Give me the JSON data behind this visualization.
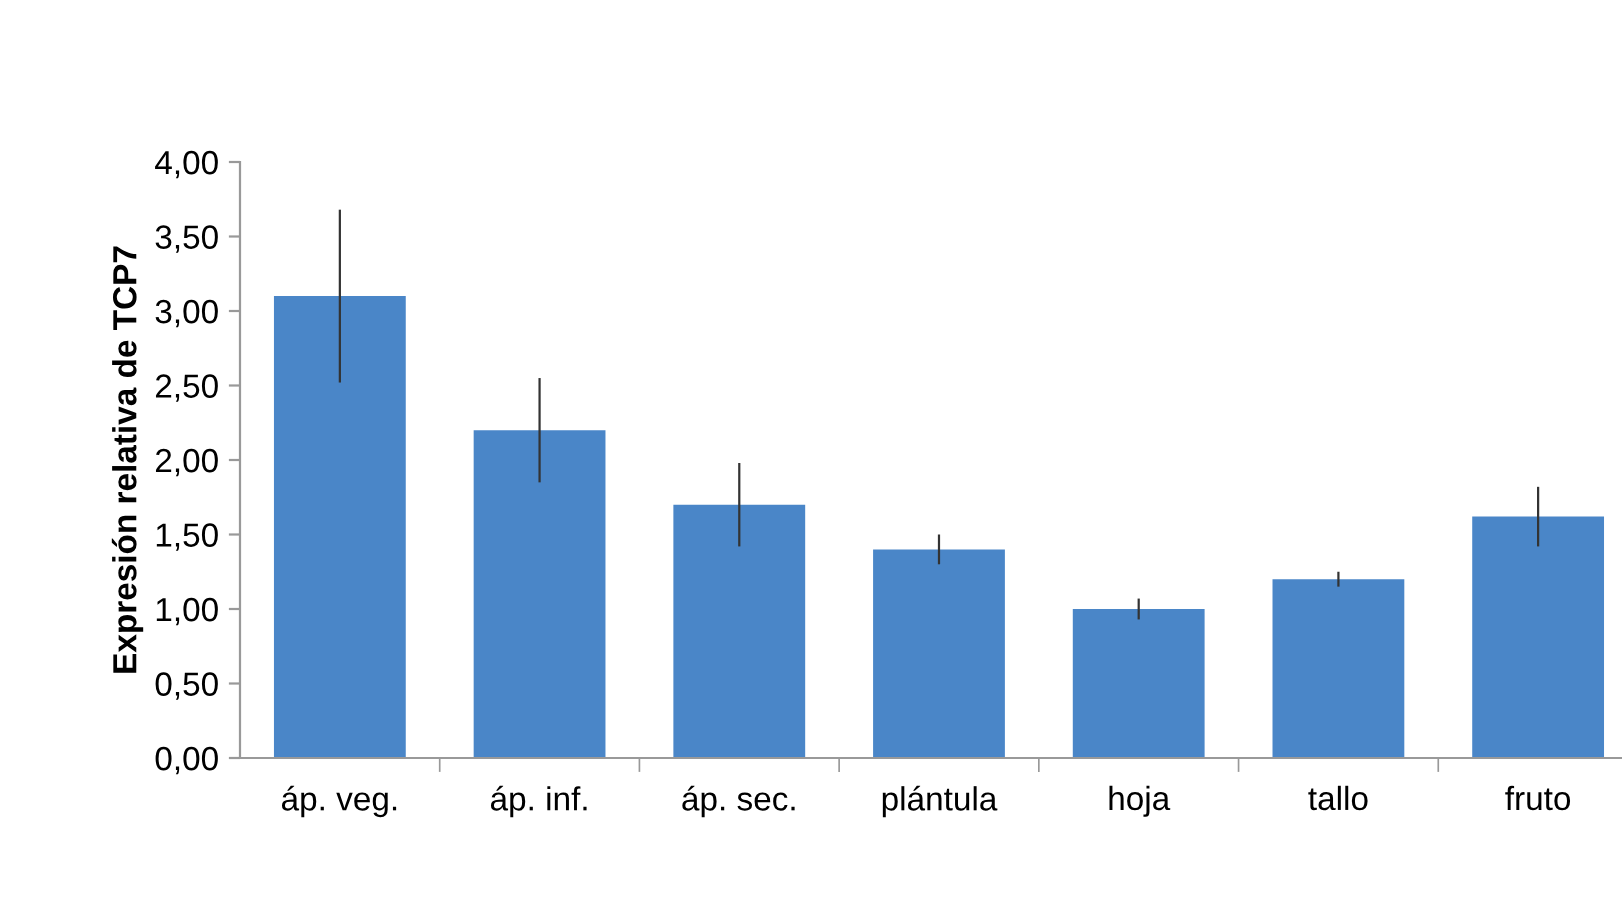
{
  "chart_data": {
    "type": "bar",
    "ylabel": "Expresión relativa de TCP7",
    "categories": [
      "áp. veg.",
      "áp. inf.",
      "áp. sec.",
      "plántula",
      "hoja",
      "tallo",
      "fruto"
    ],
    "values": [
      3.1,
      2.2,
      1.7,
      1.4,
      1.0,
      1.2,
      1.62
    ],
    "errors": [
      0.58,
      0.35,
      0.28,
      0.1,
      0.07,
      0.05,
      0.2
    ],
    "color": "#4a86c8",
    "ylim": [
      0,
      4
    ],
    "yticks": [
      {
        "value": 0,
        "label": "0,00"
      },
      {
        "value": 0.5,
        "label": "0,50"
      },
      {
        "value": 1,
        "label": "1,00"
      },
      {
        "value": 1.5,
        "label": "1,50"
      },
      {
        "value": 2,
        "label": "2,00"
      },
      {
        "value": 2.5,
        "label": "2,50"
      },
      {
        "value": 3,
        "label": "3,00"
      },
      {
        "value": 3.5,
        "label": "3,50"
      },
      {
        "value": 4,
        "label": "4,00"
      }
    ],
    "grid": false
  }
}
